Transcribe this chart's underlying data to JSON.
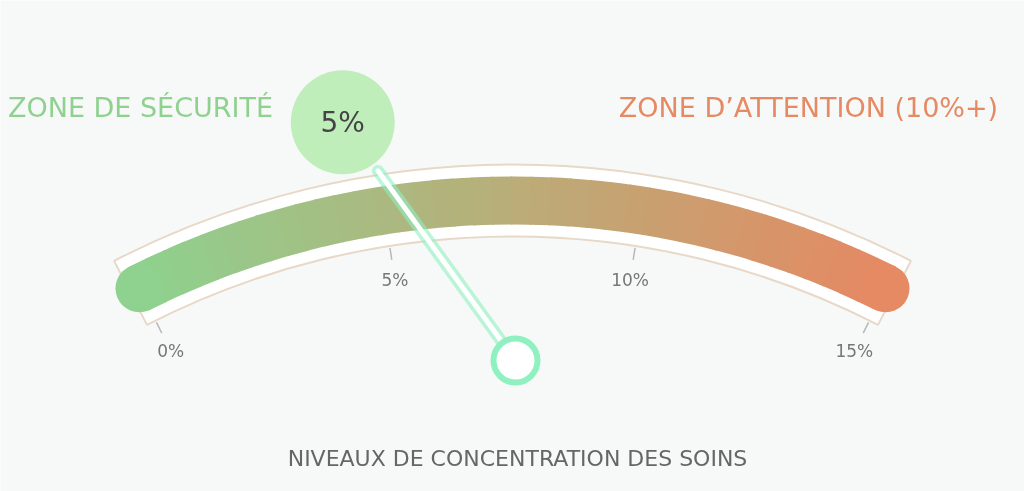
{
  "chart_data": {
    "type": "other",
    "title": "NIVEAUX DE CONCENTRATION DES SOINS",
    "values": [
      5
    ],
    "value_labels": [
      "5%"
    ],
    "annotations": [
      "0%",
      "5%",
      "10%",
      "15%",
      "ZONE DE SÉCURITÉ",
      "ZONE D’ATTENTION (10%+)"
    ]
  }
}
